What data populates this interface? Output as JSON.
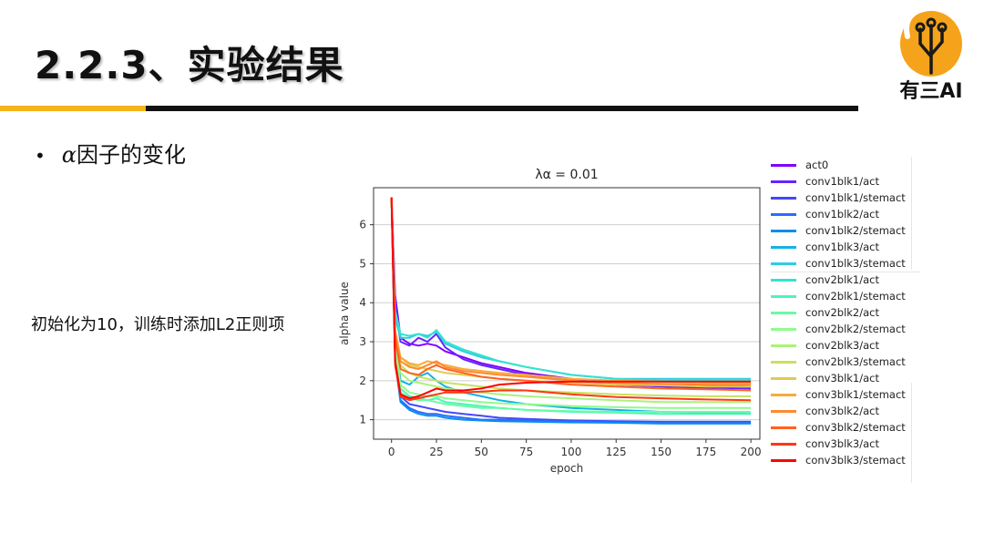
{
  "slide": {
    "title": "2.2.3、实验结果",
    "bullet_symbol": "α",
    "bullet_text": "因子的变化",
    "side_note": "初始化为10，训练时添加L2正则项"
  },
  "logo": {
    "text": "有三AI",
    "color": "#f5a31a"
  },
  "chart_data": {
    "type": "line",
    "title": "λα = 0.01",
    "xlabel": "epoch",
    "ylabel": "alpha value",
    "xlim": [
      -10,
      205
    ],
    "ylim": [
      0.5,
      6.95
    ],
    "xticks": [
      0,
      25,
      50,
      75,
      100,
      125,
      150,
      175,
      200
    ],
    "yticks": [
      1,
      2,
      3,
      4,
      5,
      6
    ],
    "grid": "horizontal",
    "legend_position": "right-outside",
    "x": [
      0,
      2,
      5,
      10,
      15,
      20,
      25,
      30,
      40,
      50,
      60,
      75,
      100,
      125,
      150,
      175,
      200
    ],
    "series": [
      {
        "name": "act0",
        "color": "#8000ff",
        "values": [
          6.7,
          4.2,
          3.1,
          2.95,
          2.9,
          2.95,
          2.9,
          2.75,
          2.6,
          2.45,
          2.35,
          2.2,
          2.05,
          1.95,
          1.9,
          1.88,
          1.85
        ]
      },
      {
        "name": "conv1blk1/act",
        "color": "#6424fe",
        "values": [
          6.7,
          3.9,
          3.0,
          2.9,
          3.1,
          3.0,
          3.2,
          2.85,
          2.55,
          2.4,
          2.3,
          2.15,
          2.0,
          1.9,
          1.85,
          1.82,
          1.8
        ]
      },
      {
        "name": "conv1blk1/stemact",
        "color": "#4547fc",
        "values": [
          6.7,
          2.9,
          1.6,
          1.4,
          1.35,
          1.3,
          1.25,
          1.2,
          1.15,
          1.1,
          1.05,
          1.02,
          0.98,
          0.96,
          0.95,
          0.95,
          0.95
        ]
      },
      {
        "name": "conv1blk2/act",
        "color": "#2b6cf7",
        "values": [
          6.7,
          2.6,
          1.5,
          1.3,
          1.2,
          1.15,
          1.15,
          1.1,
          1.05,
          1.0,
          1.0,
          0.98,
          0.95,
          0.93,
          0.92,
          0.92,
          0.92
        ]
      },
      {
        "name": "conv1blk2/stemact",
        "color": "#0a8df0",
        "values": [
          6.7,
          2.5,
          1.45,
          1.25,
          1.15,
          1.1,
          1.1,
          1.05,
          1.0,
          0.98,
          0.96,
          0.95,
          0.93,
          0.92,
          0.9,
          0.9,
          0.9
        ]
      },
      {
        "name": "conv1blk3/act",
        "color": "#15b1e6",
        "values": [
          6.7,
          3.0,
          2.0,
          1.9,
          2.1,
          2.2,
          2.0,
          1.85,
          1.7,
          1.6,
          1.5,
          1.4,
          1.3,
          1.25,
          1.2,
          1.18,
          1.15
        ]
      },
      {
        "name": "conv1blk3/stemact",
        "color": "#2ecde0",
        "values": [
          6.7,
          3.6,
          3.1,
          3.1,
          3.2,
          3.15,
          3.25,
          2.95,
          2.75,
          2.6,
          2.5,
          2.35,
          2.15,
          2.05,
          2.05,
          2.05,
          2.05
        ]
      },
      {
        "name": "conv2blk1/act",
        "color": "#32e2d0",
        "values": [
          6.7,
          3.8,
          3.2,
          3.15,
          3.2,
          3.1,
          3.3,
          3.0,
          2.8,
          2.65,
          2.5,
          2.35,
          2.15,
          2.05,
          2.0,
          2.0,
          2.0
        ]
      },
      {
        "name": "conv2blk1/stemact",
        "color": "#4df4bd",
        "values": [
          6.7,
          2.8,
          1.8,
          1.6,
          1.55,
          1.5,
          1.55,
          1.45,
          1.4,
          1.35,
          1.3,
          1.25,
          1.2,
          1.18,
          1.15,
          1.15,
          1.15
        ]
      },
      {
        "name": "conv2blk2/act",
        "color": "#66fca4",
        "values": [
          6.7,
          2.7,
          1.7,
          1.55,
          1.5,
          1.5,
          1.45,
          1.4,
          1.35,
          1.3,
          1.3,
          1.25,
          1.22,
          1.2,
          1.2,
          1.2,
          1.2
        ]
      },
      {
        "name": "conv2blk2/stemact",
        "color": "#8cfc8c",
        "values": [
          6.7,
          2.8,
          1.9,
          1.7,
          1.65,
          1.6,
          1.6,
          1.55,
          1.5,
          1.45,
          1.42,
          1.4,
          1.35,
          1.32,
          1.3,
          1.3,
          1.3
        ]
      },
      {
        "name": "conv2blk3/act",
        "color": "#aaf27a",
        "values": [
          6.7,
          3.0,
          2.2,
          2.0,
          1.95,
          1.9,
          1.85,
          1.8,
          1.75,
          1.7,
          1.65,
          1.6,
          1.55,
          1.5,
          1.45,
          1.45,
          1.45
        ]
      },
      {
        "name": "conv2blk3/stemact",
        "color": "#c7e25f",
        "values": [
          6.7,
          3.1,
          2.4,
          2.2,
          2.1,
          2.05,
          2.0,
          1.95,
          1.9,
          1.85,
          1.8,
          1.75,
          1.7,
          1.65,
          1.62,
          1.6,
          1.6
        ]
      },
      {
        "name": "conv3blk1/act",
        "color": "#e0cb51",
        "values": [
          6.7,
          3.2,
          2.6,
          2.4,
          2.35,
          2.3,
          2.25,
          2.2,
          2.15,
          2.1,
          2.05,
          2.0,
          1.95,
          1.9,
          1.88,
          1.85,
          1.85
        ]
      },
      {
        "name": "conv3blk1/stemact",
        "color": "#f7ab3c",
        "values": [
          6.7,
          3.3,
          2.6,
          2.45,
          2.4,
          2.5,
          2.45,
          2.4,
          2.3,
          2.25,
          2.2,
          2.15,
          2.05,
          2.0,
          1.98,
          1.95,
          1.95
        ]
      },
      {
        "name": "conv3blk2/act",
        "color": "#fe8a2e",
        "values": [
          6.7,
          3.2,
          2.5,
          2.35,
          2.3,
          2.4,
          2.5,
          2.35,
          2.25,
          2.2,
          2.15,
          2.1,
          2.0,
          1.95,
          1.92,
          1.9,
          1.9
        ]
      },
      {
        "name": "conv3blk2/stemact",
        "color": "#ff6220",
        "values": [
          6.7,
          3.1,
          2.3,
          2.2,
          2.15,
          2.3,
          2.4,
          2.3,
          2.2,
          2.1,
          2.05,
          2.0,
          1.9,
          1.85,
          1.8,
          1.78,
          1.75
        ]
      },
      {
        "name": "conv3blk3/act",
        "color": "#ff3812",
        "values": [
          6.7,
          2.4,
          1.6,
          1.5,
          1.55,
          1.6,
          1.65,
          1.7,
          1.7,
          1.72,
          1.75,
          1.75,
          1.65,
          1.58,
          1.55,
          1.52,
          1.5
        ]
      },
      {
        "name": "conv3blk3/stemact",
        "color": "#ff0000",
        "values": [
          6.7,
          2.5,
          1.65,
          1.55,
          1.6,
          1.7,
          1.8,
          1.75,
          1.75,
          1.8,
          1.9,
          1.95,
          1.98,
          1.98,
          1.98,
          1.98,
          1.98
        ]
      }
    ]
  }
}
